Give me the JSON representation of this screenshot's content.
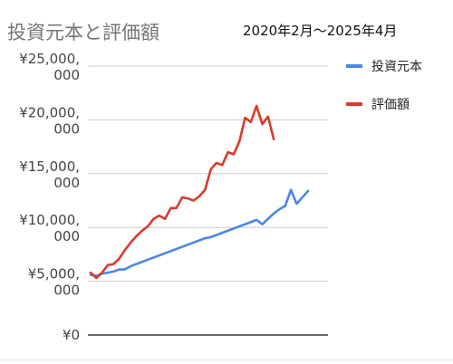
{
  "chart_data": {
    "type": "line",
    "title": "投資元本と評価額",
    "subtitle": "2020年2月〜2025年4月",
    "y_tick_labels": [
      "¥0",
      "¥5,000,000",
      "¥10,000,000",
      "¥15,000,000",
      "¥20,000,000",
      "¥25,000,000"
    ],
    "y_ticks": [
      0,
      5000000,
      10000000,
      15000000,
      20000000,
      25000000
    ],
    "ylim": [
      0,
      25000000
    ],
    "x_index_range": [
      0,
      41
    ],
    "grid": true,
    "legend_position": "right",
    "series": [
      {
        "name": "投資元本",
        "color": "#4a86e8",
        "values": [
          5600000,
          5500000,
          5700000,
          5800000,
          5900000,
          6100000,
          6100000,
          6400000,
          6600000,
          6800000,
          7000000,
          7200000,
          7400000,
          7600000,
          7800000,
          8000000,
          8200000,
          8400000,
          8600000,
          8800000,
          9000000,
          9100000,
          9300000,
          9500000,
          9700000,
          9900000,
          10100000,
          10300000,
          10500000,
          10700000,
          10300000,
          10800000,
          11300000,
          11700000,
          12000000,
          13500000,
          12200000,
          12800000,
          13400000
        ]
      },
      {
        "name": "評価額",
        "color": "#d93b2b",
        "values": [
          5800000,
          5300000,
          5800000,
          6500000,
          6600000,
          7100000,
          7900000,
          8600000,
          9200000,
          9700000,
          10100000,
          10800000,
          11100000,
          10800000,
          11800000,
          11800000,
          12800000,
          12700000,
          12500000,
          12900000,
          13500000,
          15400000,
          16000000,
          15800000,
          17000000,
          16800000,
          18000000,
          20200000,
          19800000,
          21300000,
          19600000,
          20300000,
          18200000
        ]
      }
    ]
  }
}
